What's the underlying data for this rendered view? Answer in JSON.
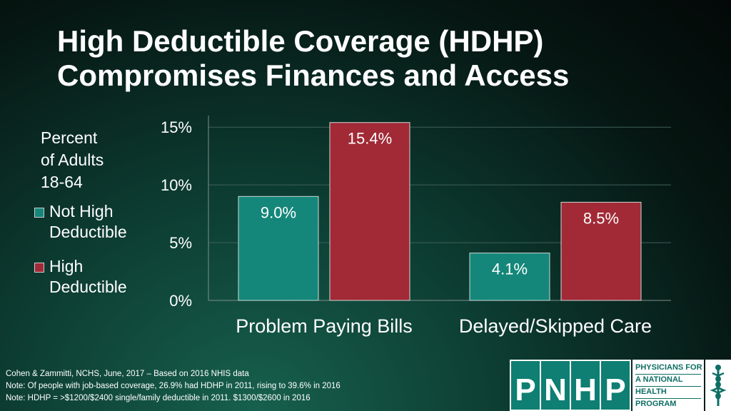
{
  "slide": {
    "title_line1": "High Deductible Coverage (HDHP)",
    "title_line2": "Compromises Finances and Access",
    "footnotes": [
      "Cohen & Zammitti, NCHS, June, 2017 – Based on 2016 NHIS data",
      "Note: Of people with job-based coverage, 26.9% had HDHP in 2011, rising to 39.6% in 2016",
      "Note: HDHP = >$1200/$2400 single/family deductible in 2011. $1300/$2600 in 2016"
    ],
    "logo": {
      "letters": [
        "P",
        "N",
        "H",
        "P"
      ],
      "words": [
        "PHYSICIANS FOR",
        "A NATIONAL",
        "HEALTH",
        "PROGRAM"
      ],
      "emblem": "caduceus-icon"
    }
  },
  "chart_data": {
    "type": "bar",
    "title": "",
    "ylabel_lines": [
      "Percent",
      "of Adults",
      "18-64"
    ],
    "categories": [
      "Problem Paying Bills",
      "Delayed/Skipped Care"
    ],
    "series": [
      {
        "name": "Not High Deductible",
        "values": [
          9.0,
          4.1
        ],
        "labels": [
          "9.0%",
          "4.1%"
        ],
        "color": "#14877a"
      },
      {
        "name": "High Deductible",
        "values": [
          15.4,
          8.5
        ],
        "labels": [
          "15.4%",
          "8.5%"
        ],
        "color": "#a12a36"
      }
    ],
    "yticks": [
      0,
      5,
      10,
      15
    ],
    "ytick_labels": [
      "0%",
      "5%",
      "10%",
      "15%"
    ],
    "ylim": [
      0,
      16
    ],
    "grid": true,
    "legend_position": "left"
  }
}
